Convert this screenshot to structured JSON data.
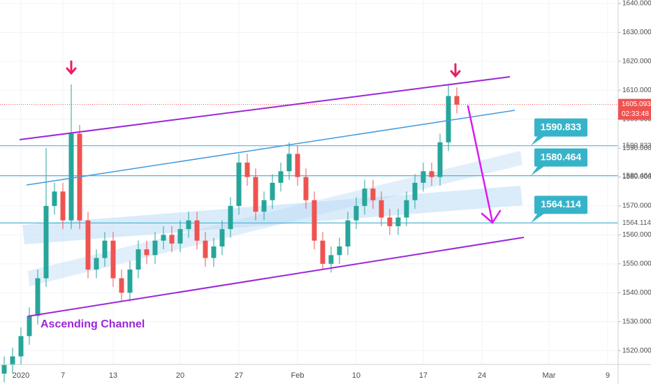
{
  "chart_data": {
    "type": "candlestick",
    "categories": [
      null,
      null,
      "2020",
      null,
      null,
      null,
      null,
      "7",
      null,
      null,
      null,
      null,
      null,
      "13",
      null,
      null,
      null,
      null,
      null,
      null,
      null,
      "20",
      null,
      null,
      null,
      null,
      null,
      null,
      "27",
      null,
      null,
      null,
      null,
      null,
      null,
      "Feb",
      null,
      null,
      null,
      null,
      null,
      null,
      "10",
      null,
      null,
      null,
      null,
      null,
      null,
      null,
      "17",
      null,
      null,
      null,
      null,
      null,
      null,
      "24",
      null,
      null,
      null,
      null,
      null,
      null,
      null,
      "Mar",
      null,
      null,
      null,
      null,
      null,
      null,
      "9",
      null
    ],
    "open": [
      1512,
      1515,
      1518,
      1525,
      1532,
      1545,
      1570,
      1575,
      1565,
      1595,
      1565,
      1548,
      1552,
      1558,
      1545,
      1540,
      1548,
      1555,
      1553,
      1558,
      1560,
      1557,
      1562,
      1565,
      1558,
      1552,
      1556,
      1562,
      1570,
      1585,
      1580,
      1568,
      1572,
      1578,
      1582,
      1588,
      1580,
      1572,
      1558,
      1550,
      1553,
      1556,
      1565,
      1570,
      1576,
      1572,
      1566,
      1563,
      1566,
      1572,
      1578,
      1582,
      1580,
      1592,
      1608,
      null,
      null,
      null,
      null,
      null,
      null,
      null,
      null,
      null,
      null,
      null,
      null,
      null,
      null,
      null,
      null,
      null,
      null,
      null
    ],
    "high": [
      1518,
      1521,
      1528,
      1535,
      1548,
      1590,
      1578,
      1578,
      1612,
      1598,
      1568,
      1555,
      1561,
      1561,
      1548,
      1551,
      1558,
      1558,
      1561,
      1563,
      1563,
      1565,
      1568,
      1568,
      1561,
      1559,
      1565,
      1573,
      1588,
      1588,
      1583,
      1575,
      1581,
      1585,
      1592,
      1591,
      1583,
      1575,
      1561,
      1556,
      1559,
      1568,
      1573,
      1579,
      1579,
      1575,
      1569,
      1569,
      1575,
      1581,
      1585,
      1585,
      1595,
      1612,
      1611,
      null,
      null,
      null,
      null,
      null,
      null,
      null,
      null,
      null,
      null,
      null,
      null,
      null,
      null,
      null,
      null,
      null,
      null,
      null
    ],
    "low": [
      1509,
      1512,
      1515,
      1522,
      1529,
      1542,
      1567,
      1562,
      1562,
      1562,
      1545,
      1545,
      1549,
      1542,
      1537,
      1537,
      1545,
      1550,
      1550,
      1555,
      1554,
      1554,
      1559,
      1555,
      1549,
      1549,
      1553,
      1559,
      1567,
      1577,
      1565,
      1565,
      1569,
      1575,
      1579,
      1577,
      1569,
      1555,
      1548,
      1547,
      1550,
      1553,
      1562,
      1567,
      1569,
      1563,
      1560,
      1560,
      1563,
      1569,
      1575,
      1577,
      1577,
      1589,
      1602,
      null,
      null,
      null,
      null,
      null,
      null,
      null,
      null,
      null,
      null,
      null,
      null,
      null,
      null,
      null,
      null,
      null,
      null,
      null
    ],
    "close": [
      1515,
      1518,
      1525,
      1532,
      1545,
      1570,
      1575,
      1565,
      1595,
      1565,
      1548,
      1552,
      1558,
      1545,
      1540,
      1548,
      1555,
      1553,
      1558,
      1560,
      1557,
      1562,
      1565,
      1558,
      1552,
      1556,
      1562,
      1570,
      1585,
      1580,
      1568,
      1572,
      1578,
      1582,
      1588,
      1580,
      1572,
      1558,
      1550,
      1553,
      1556,
      1565,
      1570,
      1576,
      1572,
      1566,
      1563,
      1566,
      1572,
      1578,
      1582,
      1580,
      1592,
      1608,
      1605,
      null,
      null,
      null,
      null,
      null,
      null,
      null,
      null,
      null,
      null,
      null,
      null,
      null,
      null,
      null,
      null,
      null,
      null,
      null
    ],
    "up_color": "#26a69a",
    "down_color": "#ef5350",
    "ylim": [
      1515.2,
      1641.2
    ],
    "yticks": [
      {
        "value": 1520,
        "label": "1520.000"
      },
      {
        "value": 1530,
        "label": "1530.000"
      },
      {
        "value": 1540,
        "label": "1540.000"
      },
      {
        "value": 1550,
        "label": "1550.000"
      },
      {
        "value": 1560,
        "label": "1560.000"
      },
      {
        "value": 1570,
        "label": "1570.000"
      },
      {
        "value": 1580,
        "label": "1580.000"
      },
      {
        "value": 1590,
        "label": "1590.000"
      },
      {
        "value": 1600,
        "label": "1600.000"
      },
      {
        "value": 1610,
        "label": "1610.000"
      },
      {
        "value": 1620,
        "label": "1620.000"
      },
      {
        "value": 1630,
        "label": "1630.000"
      },
      {
        "value": 1640,
        "label": "1640.000"
      }
    ],
    "grid": true,
    "levels": [
      {
        "value": 1590.833,
        "color": "#4fb8d6"
      },
      {
        "value": 1580.464,
        "color": "#4fb8d6"
      },
      {
        "value": 1564.114,
        "color": "#4fb8d6"
      }
    ],
    "last_price": 1605.093,
    "countdown": "02:33:48",
    "annotation": "Ascending Channel"
  }
}
